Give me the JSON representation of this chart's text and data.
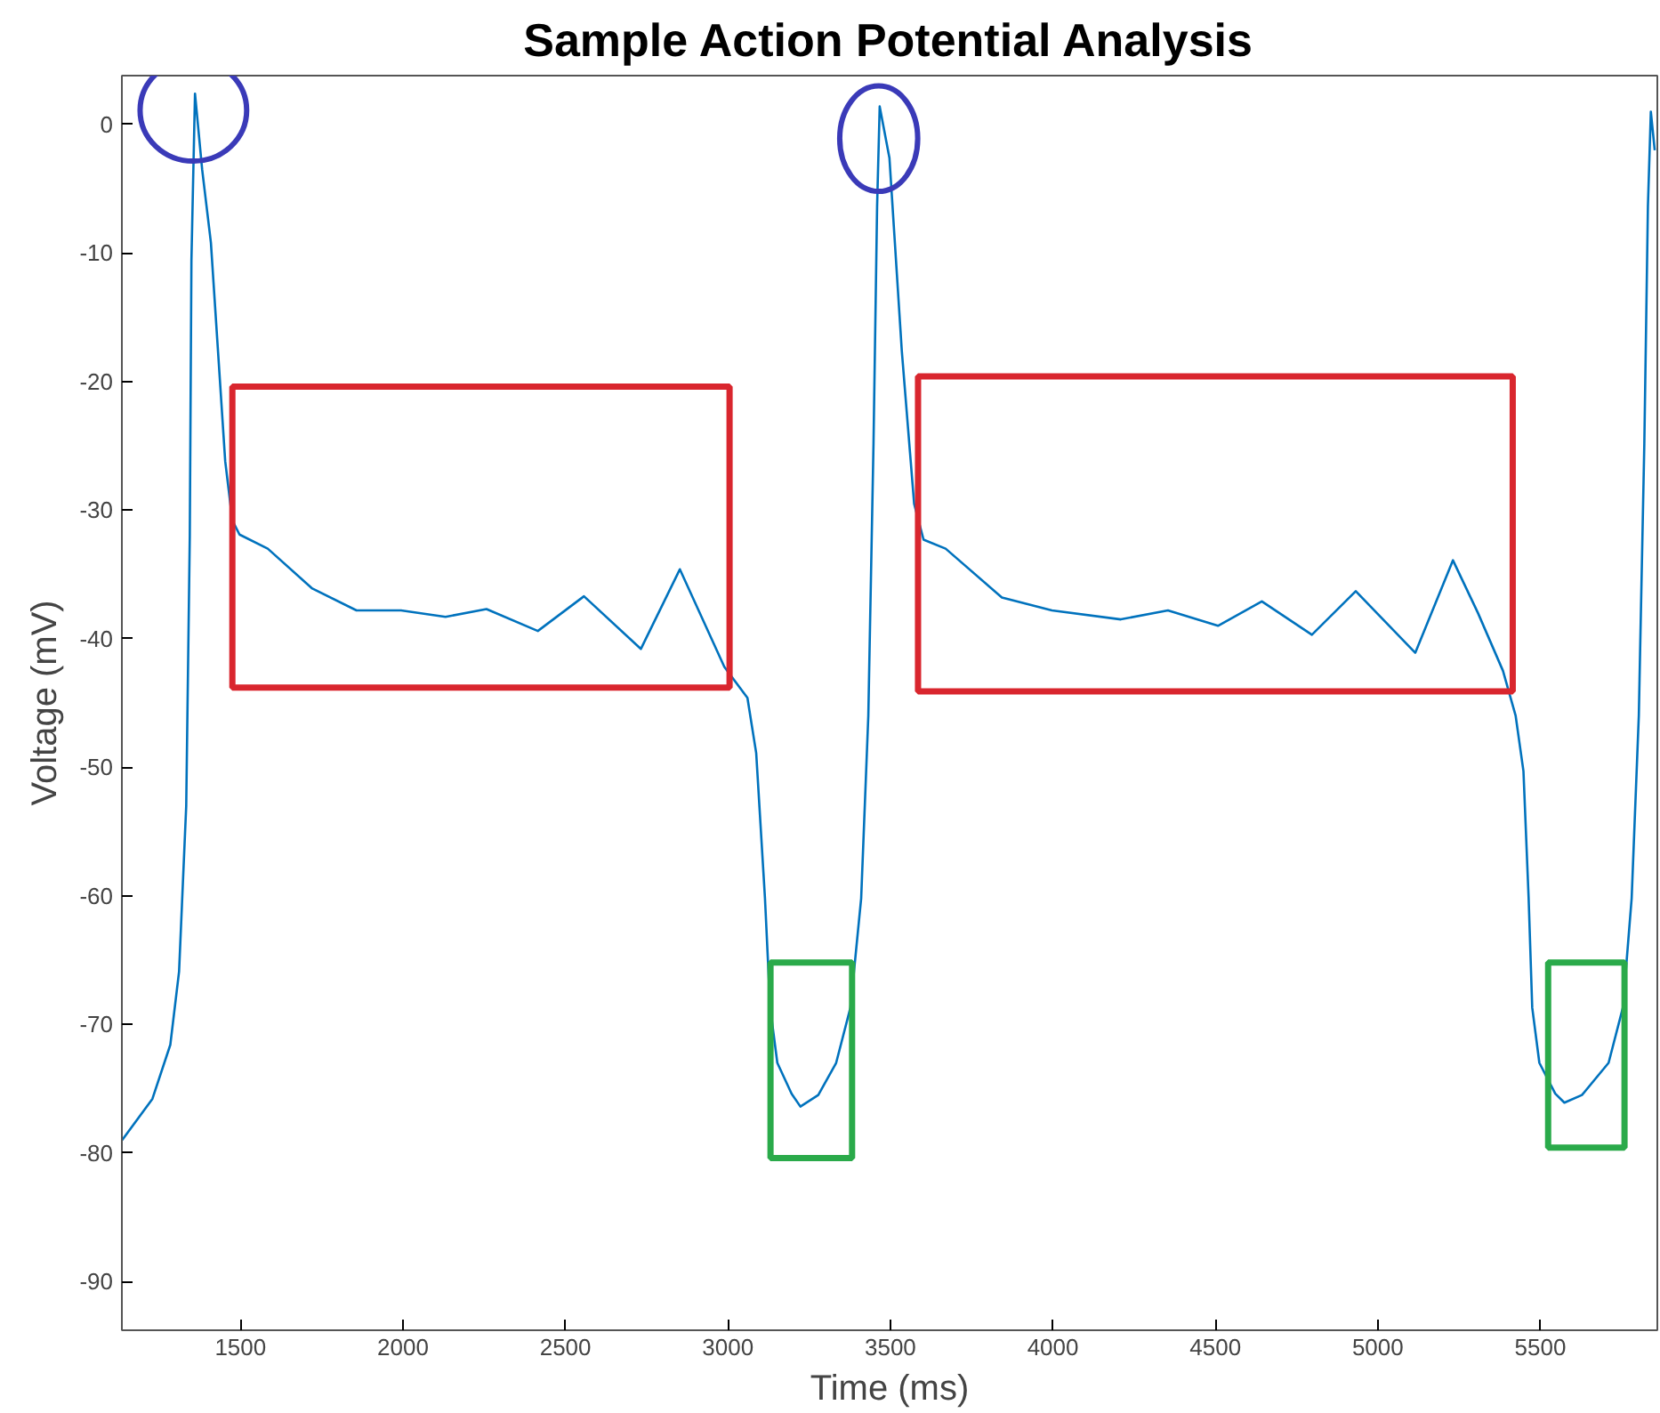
{
  "chart_data": {
    "type": "line",
    "title": "Sample Action Potential Analysis",
    "xlabel": "Time (ms)",
    "ylabel": "Voltage (mV)",
    "x": [
      1136,
      1229,
      1284,
      1311,
      1333,
      1344,
      1349,
      1360,
      1382,
      1409,
      1431,
      1453,
      1475,
      1497,
      1584,
      1721,
      1857,
      1994,
      2131,
      2257,
      2415,
      2557,
      2732,
      2852,
      2989,
      3060,
      3087,
      3114,
      3130,
      3152,
      3196,
      3223,
      3278,
      3333,
      3377,
      3410,
      3432,
      3448,
      3459,
      3467,
      3497,
      3535,
      3573,
      3602,
      3670,
      3843,
      3997,
      4209,
      4354,
      4508,
      4643,
      4797,
      4932,
      5115,
      5231,
      5308,
      5385,
      5424,
      5448,
      5464,
      5475,
      5497,
      5546,
      5574,
      5628,
      5710,
      5754,
      5781,
      5803,
      5820,
      5831,
      5840,
      5852
    ],
    "series": [
      {
        "color": "#0072bd",
        "values": [
          -79,
          -75.8,
          -71.6,
          -65.9,
          -53,
          -32,
          -10.6,
          2.4,
          -3.5,
          -9.2,
          -17.7,
          -26.2,
          -30.8,
          -31.9,
          -33,
          -36.1,
          -37.8,
          -37.8,
          -38.3,
          -37.7,
          -39.4,
          -36.7,
          -40.8,
          -34.6,
          -42.2,
          -44.6,
          -48.9,
          -60.2,
          -68.7,
          -73,
          -75.4,
          -76.4,
          -75.5,
          -73,
          -68.7,
          -60.2,
          -46,
          -24.8,
          -6.4,
          1.4,
          -2.6,
          -17.6,
          -29.5,
          -32.3,
          -33,
          -36.8,
          -37.8,
          -38.5,
          -37.8,
          -39,
          -37.1,
          -39.7,
          -36.3,
          -41.1,
          -33.9,
          -38,
          -42.5,
          -46,
          -50.3,
          -60.2,
          -68.7,
          -73,
          -75.4,
          -76.1,
          -75.5,
          -73,
          -68.7,
          -60.2,
          -46,
          -24.8,
          -6.4,
          1,
          -2
        ]
      }
    ],
    "xlim": [
      1135,
      5860
    ],
    "ylim": [
      -93.8,
      3.8
    ],
    "xticks": [
      1500,
      2000,
      2500,
      3000,
      3500,
      4000,
      4500,
      5000,
      5500
    ],
    "yticks": [
      -90,
      -80,
      -70,
      -60,
      -50,
      -40,
      -30,
      -20,
      -10,
      0
    ],
    "grid": false,
    "marker": "none",
    "line_style": "solid"
  }
}
